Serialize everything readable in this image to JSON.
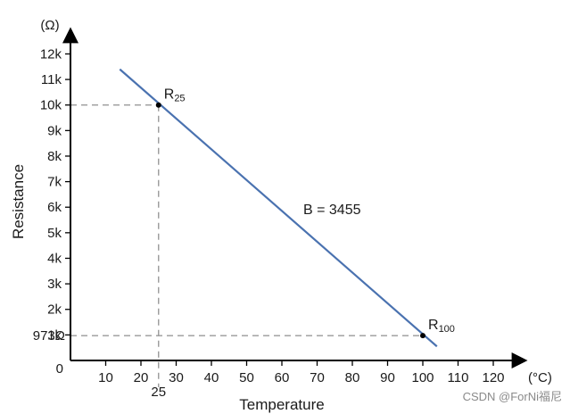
{
  "chart_data": {
    "type": "line",
    "x_unit": "(°C)",
    "y_unit": "(Ω)",
    "xlabel": "Temperature",
    "ylabel": "Resistance",
    "x_ticks": [
      10,
      20,
      30,
      40,
      50,
      60,
      70,
      80,
      90,
      100,
      110,
      120
    ],
    "x_tick_labels": [
      "10",
      "20",
      "30",
      "40",
      "50",
      "60",
      "70",
      "80",
      "90",
      "100",
      "110",
      "120"
    ],
    "y_ticks": [
      1000,
      2000,
      3000,
      4000,
      5000,
      6000,
      7000,
      8000,
      9000,
      10000,
      11000,
      12000
    ],
    "y_tick_labels": [
      "1k",
      "2k",
      "3k",
      "4k",
      "5k",
      "6k",
      "7k",
      "8k",
      "9k",
      "10k",
      "11k",
      "12k"
    ],
    "origin_label": "0",
    "xlim": [
      0,
      130
    ],
    "ylim": [
      0,
      13000
    ],
    "series": [
      {
        "x": [
          14,
          104
        ],
        "y": [
          11400,
          550
        ]
      }
    ],
    "points": [
      {
        "label_main": "R",
        "label_sub": "25",
        "x": 25,
        "y": 10000
      },
      {
        "label_main": "R",
        "label_sub": "100",
        "x": 100,
        "y": 973
      }
    ],
    "reference_labels": {
      "x": "25",
      "y": "973Ω"
    },
    "annotation": "B = 3455",
    "line_color": "#4a72b0",
    "grid": false
  },
  "watermark": "CSDN @ForNi福尼"
}
